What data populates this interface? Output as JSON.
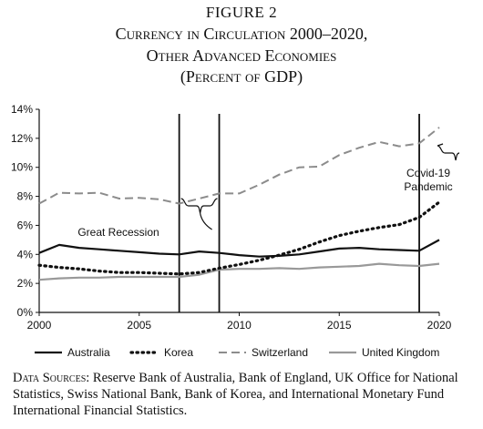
{
  "figure_label": "FIGURE 2",
  "title_line1": "Currency in Circulation 2000–2020,",
  "title_line2": "Other Advanced Economies",
  "title_line3": "(Percent of GDP)",
  "sources_label": "Data Sources:",
  "sources_text": "Reserve Bank of Australia, Bank of England, UK Office for National Statistics, Swiss National Bank, Bank of Korea, and International Monetary Fund International Financial Statistics.",
  "chart_data": {
    "type": "line",
    "x": [
      2000,
      2001,
      2002,
      2003,
      2004,
      2005,
      2006,
      2007,
      2008,
      2009,
      2010,
      2011,
      2012,
      2013,
      2014,
      2015,
      2016,
      2017,
      2018,
      2019,
      2020
    ],
    "xlim": [
      2000,
      2020
    ],
    "ylim": [
      0,
      14
    ],
    "xticks": [
      2000,
      2005,
      2010,
      2015,
      2020
    ],
    "yticks": [
      "0%",
      "2%",
      "4%",
      "6%",
      "8%",
      "10%",
      "12%",
      "14%"
    ],
    "grid": false,
    "legend_position": "bottom",
    "series": [
      {
        "name": "Australia",
        "style": "solid",
        "color": "#111111",
        "values": [
          4.1,
          4.65,
          4.45,
          4.35,
          4.25,
          4.15,
          4.05,
          4.0,
          4.2,
          4.1,
          3.95,
          3.85,
          3.9,
          4.0,
          4.2,
          4.4,
          4.45,
          4.35,
          4.3,
          4.25,
          5.0
        ]
      },
      {
        "name": "Korea",
        "style": "dotted",
        "color": "#111111",
        "values": [
          3.25,
          3.1,
          3.0,
          2.85,
          2.75,
          2.75,
          2.7,
          2.65,
          2.75,
          3.05,
          3.3,
          3.6,
          3.95,
          4.35,
          4.85,
          5.3,
          5.6,
          5.85,
          6.05,
          6.55,
          7.6
        ]
      },
      {
        "name": "Switzerland",
        "style": "dashed",
        "color": "#8c8c8c",
        "values": [
          7.5,
          8.25,
          8.2,
          8.25,
          7.85,
          7.9,
          7.8,
          7.5,
          7.85,
          8.2,
          8.2,
          8.8,
          9.5,
          10.0,
          10.05,
          10.85,
          11.35,
          11.75,
          11.45,
          11.65,
          12.75
        ]
      },
      {
        "name": "United Kingdom",
        "style": "solid",
        "color": "#999999",
        "values": [
          2.25,
          2.35,
          2.4,
          2.4,
          2.45,
          2.45,
          2.45,
          2.45,
          2.6,
          2.95,
          3.0,
          3.0,
          3.05,
          3.0,
          3.1,
          3.15,
          3.2,
          3.35,
          3.25,
          3.2,
          3.35
        ]
      }
    ],
    "vertical_lines": [
      2007,
      2009,
      2019
    ],
    "annotations": [
      {
        "text": "Great Recession"
      },
      {
        "text": "Covid-19"
      },
      {
        "text": "Pandemic"
      }
    ]
  }
}
